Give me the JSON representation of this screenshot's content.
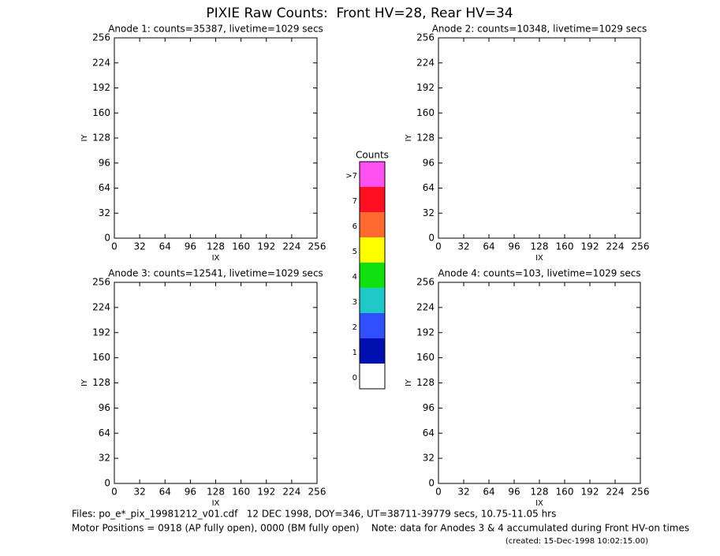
{
  "title": "PIXIE Raw Counts:  Front HV=28, Rear HV=34",
  "chart_data": [
    {
      "type": "heatmap",
      "title": "Anode 1: counts=35387, livetime=1029 secs",
      "xlabel": "IX",
      "ylabel": "IY",
      "xlim": [
        0,
        256
      ],
      "ylim": [
        0,
        256
      ],
      "xticks": [
        0,
        32,
        64,
        96,
        128,
        160,
        192,
        224,
        256
      ],
      "yticks": [
        0,
        32,
        64,
        96,
        128,
        160,
        192,
        224,
        256
      ]
    },
    {
      "type": "heatmap",
      "title": "Anode 2: counts=10348, livetime=1029 secs",
      "xlabel": "IX",
      "ylabel": "IY",
      "xlim": [
        0,
        256
      ],
      "ylim": [
        0,
        256
      ],
      "xticks": [
        0,
        32,
        64,
        96,
        128,
        160,
        192,
        224,
        256
      ],
      "yticks": [
        0,
        32,
        64,
        96,
        128,
        160,
        192,
        224,
        256
      ]
    },
    {
      "type": "heatmap",
      "title": "Anode 3: counts=12541, livetime=1029 secs",
      "xlabel": "IX",
      "ylabel": "IY",
      "xlim": [
        0,
        256
      ],
      "ylim": [
        0,
        256
      ],
      "xticks": [
        0,
        32,
        64,
        96,
        128,
        160,
        192,
        224,
        256
      ],
      "yticks": [
        0,
        32,
        64,
        96,
        128,
        160,
        192,
        224,
        256
      ]
    },
    {
      "type": "heatmap",
      "title": "Anode 4: counts=103, livetime=1029 secs",
      "xlabel": "IX",
      "ylabel": "IY",
      "xlim": [
        0,
        256
      ],
      "ylim": [
        0,
        256
      ],
      "xticks": [
        0,
        32,
        64,
        96,
        128,
        160,
        192,
        224,
        256
      ],
      "yticks": [
        0,
        32,
        64,
        96,
        128,
        160,
        192,
        224,
        256
      ]
    }
  ],
  "colorbar": {
    "title": "Counts",
    "labels": [
      "0",
      "1",
      "2",
      "3",
      "4",
      "5",
      "6",
      "7",
      ">7"
    ],
    "colors": [
      "#ffffff",
      "#0010b0",
      "#3050ff",
      "#20c8c8",
      "#10e010",
      "#ffff00",
      "#ff6a30",
      "#ff1020",
      "#ff50f0"
    ]
  },
  "footer": [
    "Files: po_e*_pix_19981212_v01.cdf   12 DEC 1998, DOY=346, UT=38711-39779 secs, 10.75-11.05 hrs",
    "Motor Positions = 0918 (AP fully open), 0000 (BM fully open)    Note: data for Anodes 3 & 4 accumulated during Front HV-on times",
    "(created: 15-Dec-1998 10:02:15.00)"
  ]
}
